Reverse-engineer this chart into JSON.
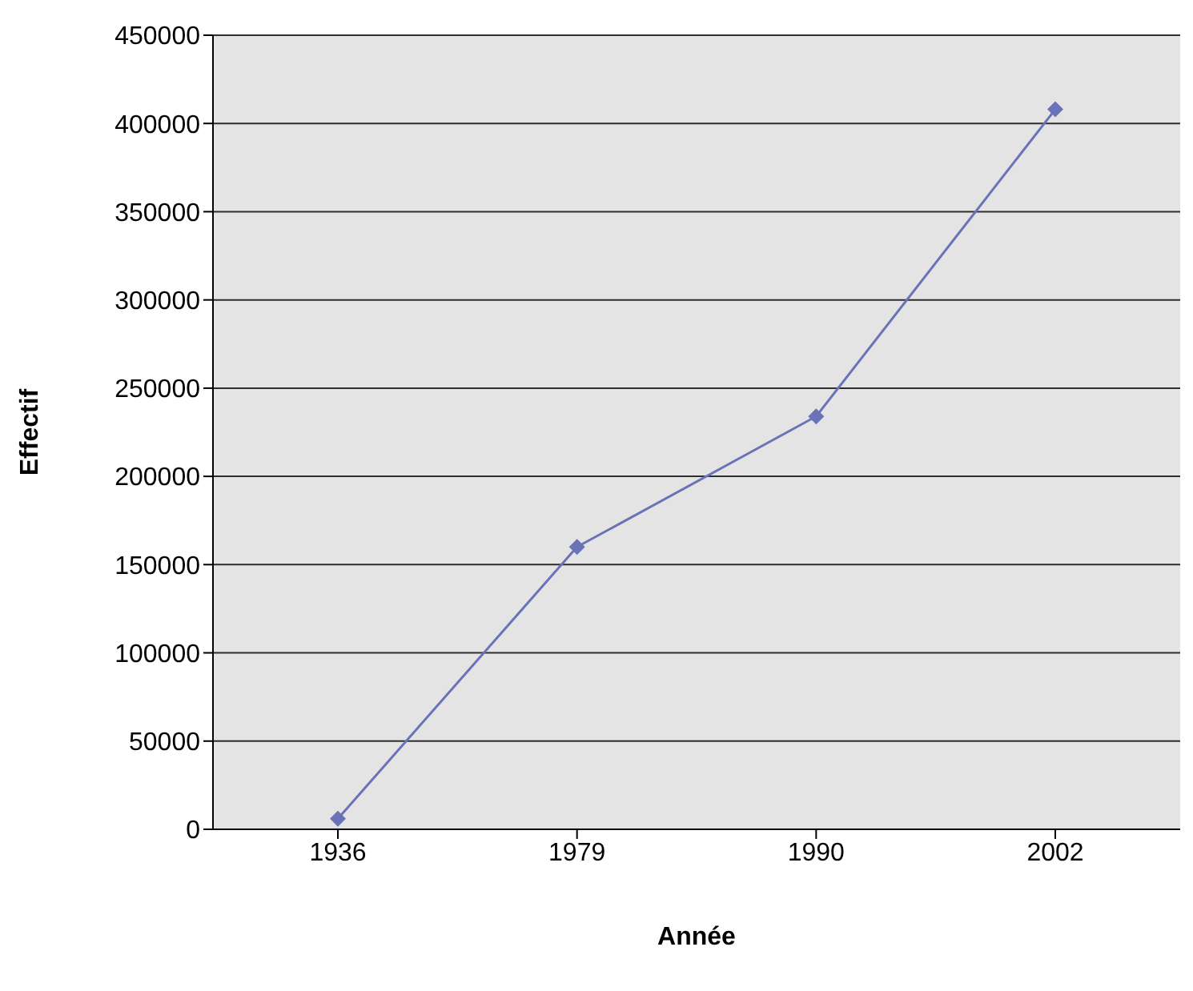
{
  "chart_data": {
    "type": "line",
    "xlabel": "Année",
    "ylabel": "Effectif",
    "categories": [
      "1936",
      "1979",
      "1990",
      "2002"
    ],
    "series": [
      {
        "color": "#6a72b8",
        "values": [
          6000,
          160000,
          234000,
          408000
        ]
      }
    ],
    "ylim": [
      0,
      450000
    ],
    "yticks": [
      0,
      50000,
      100000,
      150000,
      200000,
      250000,
      300000,
      350000,
      400000,
      450000
    ],
    "grid": "y",
    "marker": "diamond",
    "legend": false
  }
}
